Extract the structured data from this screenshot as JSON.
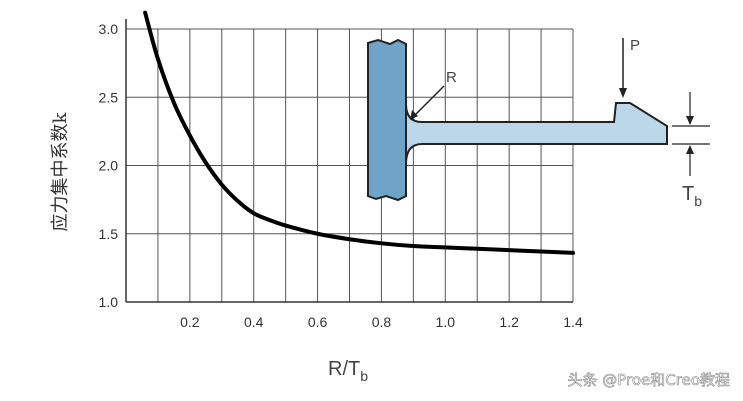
{
  "chart_data": {
    "type": "line",
    "ylabel": "应力集中系数k",
    "xlabel_main": "R/T",
    "xlabel_sub": "b",
    "xlim": [
      0.0,
      1.4
    ],
    "ylim": [
      1.0,
      3.0
    ],
    "x_ticks": [
      "0.2",
      "0.4",
      "0.6",
      "0.8",
      "1.0",
      "1.2",
      "1.4"
    ],
    "x_tick_values": [
      0.2,
      0.4,
      0.6,
      0.8,
      1.0,
      1.2,
      1.4
    ],
    "y_ticks": [
      "1.0",
      "1.5",
      "2.0",
      "2.5",
      "3.0"
    ],
    "y_tick_values": [
      1.0,
      1.5,
      2.0,
      2.5,
      3.0
    ],
    "series": [
      {
        "x": [
          0.06,
          0.1,
          0.15,
          0.2,
          0.25,
          0.3,
          0.35,
          0.4,
          0.45,
          0.5,
          0.6,
          0.7,
          0.8,
          0.9,
          1.0,
          1.1,
          1.2,
          1.3,
          1.4
        ],
        "values": [
          3.12,
          2.78,
          2.46,
          2.22,
          2.02,
          1.86,
          1.74,
          1.65,
          1.6,
          1.56,
          1.5,
          1.46,
          1.43,
          1.41,
          1.4,
          1.39,
          1.38,
          1.37,
          1.36
        ],
        "color": "#000000"
      }
    ],
    "grid": true
  },
  "diagram": {
    "load_label": "P",
    "radius_label": "R",
    "thickness_label_main": "T",
    "thickness_label_sub": "b",
    "part_color": "#6fa3c8",
    "part_light_color": "#bcd7ea"
  },
  "watermark": {
    "text": "头条 @Proe和Creo教程"
  }
}
